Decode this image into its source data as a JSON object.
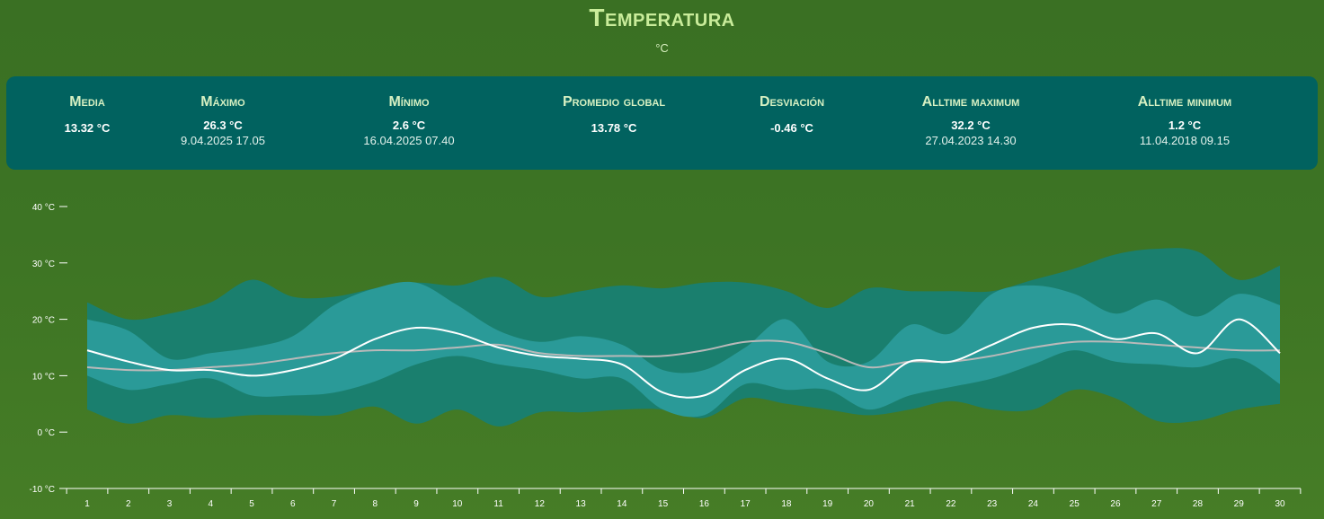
{
  "header": {
    "title": "Temperatura",
    "unit": "°C"
  },
  "stats": [
    {
      "label": "Media",
      "value": "13.32 °C",
      "stamp": ""
    },
    {
      "label": "Máximo",
      "value": "26.3 °C",
      "stamp": "9.04.2025 17.05"
    },
    {
      "label": "Mínimo",
      "value": "2.6 °C",
      "stamp": "16.04.2025 07.40"
    },
    {
      "label": "Promedio global",
      "value": "13.78 °C",
      "stamp": ""
    },
    {
      "label": "Desviación",
      "value": "-0.46 °C",
      "stamp": ""
    },
    {
      "label": "Alltime maximum",
      "value": "32.2 °C",
      "stamp": "27.04.2023 14.30"
    },
    {
      "label": "Alltime minimum",
      "value": "1.2 °C",
      "stamp": "11.04.2018 09.15"
    }
  ],
  "colors": {
    "background": "#3d7424",
    "panel": "#01625f",
    "title": "#c9ec9a",
    "alltime_band": "#1a7f6e",
    "current_band": "#2a9a98",
    "current_line": "#ffffff",
    "average_line": "#b9b9b9"
  },
  "chart_data": {
    "type": "area",
    "title": "",
    "xlabel": "",
    "ylabel": "",
    "ylim": [
      -10,
      40
    ],
    "yticks": [
      {
        "value": 40,
        "label": "40 °C"
      },
      {
        "value": 30,
        "label": "30 °C"
      },
      {
        "value": 20,
        "label": "20 °C"
      },
      {
        "value": 10,
        "label": "10 °C"
      },
      {
        "value": 0,
        "label": "0 °C"
      },
      {
        "value": -10,
        "label": "-10 °C"
      }
    ],
    "x": [
      1,
      2,
      3,
      4,
      5,
      6,
      7,
      8,
      9,
      10,
      11,
      12,
      13,
      14,
      15,
      16,
      17,
      18,
      19,
      20,
      21,
      22,
      23,
      24,
      25,
      26,
      27,
      28,
      29,
      30
    ],
    "series": [
      {
        "role": "alltime_max",
        "values": [
          23,
          20,
          21,
          23,
          27,
          24,
          24,
          25.5,
          26.5,
          26,
          27.5,
          24,
          25,
          26,
          25.5,
          26.5,
          26.5,
          25,
          22,
          25.5,
          25,
          25,
          25,
          27,
          29,
          31.5,
          32.5,
          32,
          27,
          29.5
        ]
      },
      {
        "role": "alltime_min",
        "values": [
          4,
          1.5,
          3,
          2.5,
          3,
          3,
          3,
          4.5,
          1.5,
          4,
          1,
          3.5,
          3.5,
          4,
          4,
          2.5,
          6,
          5,
          4,
          3,
          4,
          5.5,
          4,
          4,
          7.5,
          6,
          2,
          2,
          4,
          5
        ]
      },
      {
        "role": "current_max",
        "values": [
          20,
          18,
          13,
          14,
          15,
          17,
          22.5,
          25.5,
          26.5,
          22.5,
          18,
          16,
          17,
          15.5,
          11,
          11,
          15,
          20,
          12.5,
          12.5,
          19,
          17.5,
          24.5,
          26,
          24.5,
          21,
          23.5,
          20.5,
          24.5,
          22.5
        ]
      },
      {
        "role": "current_min",
        "values": [
          10,
          7.5,
          8.5,
          9.5,
          6.5,
          6.5,
          7,
          9,
          12,
          13.5,
          12,
          11,
          9.5,
          9.5,
          4,
          3,
          8.5,
          7.5,
          7.5,
          4,
          6.5,
          8,
          9.5,
          12,
          14.5,
          12.5,
          12,
          11.5,
          13,
          8.5
        ]
      },
      {
        "role": "current",
        "values": [
          14.5,
          12.5,
          11,
          11,
          10,
          11,
          13,
          16.5,
          18.5,
          17.5,
          15,
          13.5,
          13,
          12,
          7,
          6.5,
          11,
          13,
          9.5,
          7.5,
          12.5,
          12.5,
          15.5,
          18.5,
          19,
          16.5,
          17.5,
          14,
          20,
          14
        ]
      },
      {
        "role": "average",
        "values": [
          11.5,
          11,
          11,
          11.5,
          12,
          13,
          14,
          14.5,
          14.5,
          15,
          15.5,
          14,
          13.5,
          13.5,
          13.5,
          14.5,
          16,
          16,
          14,
          11.5,
          12.5,
          12.5,
          13.5,
          15,
          16,
          16,
          15.5,
          15,
          14.5,
          14.5
        ]
      }
    ]
  }
}
